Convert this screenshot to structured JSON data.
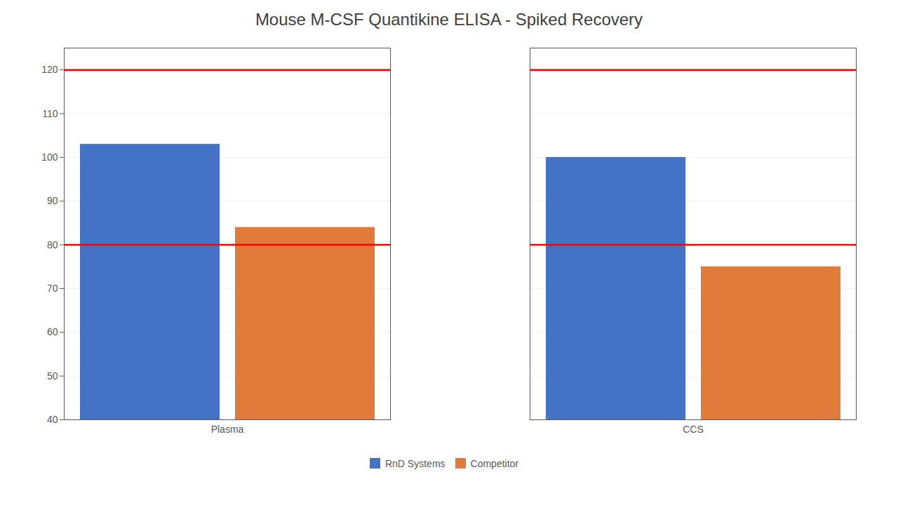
{
  "chart_data": {
    "type": "bar",
    "title": "Mouse M-CSF Quantikine ELISA - Spiked Recovery",
    "categories": [
      "Plasma",
      "CCS"
    ],
    "series": [
      {
        "name": "RnD Systems",
        "color": "#4472C4",
        "values": [
          103,
          100
        ]
      },
      {
        "name": "Competitor",
        "color": "#E07B39",
        "values": [
          84,
          75
        ]
      }
    ],
    "reference_lines": [
      {
        "value": 120,
        "color": "#FF0000"
      },
      {
        "value": 80,
        "color": "#FF0000"
      }
    ],
    "ylim": [
      40,
      125
    ],
    "yticks": [
      40,
      50,
      60,
      70,
      80,
      90,
      100,
      110,
      120
    ],
    "grid": true,
    "legend": "bottom"
  }
}
